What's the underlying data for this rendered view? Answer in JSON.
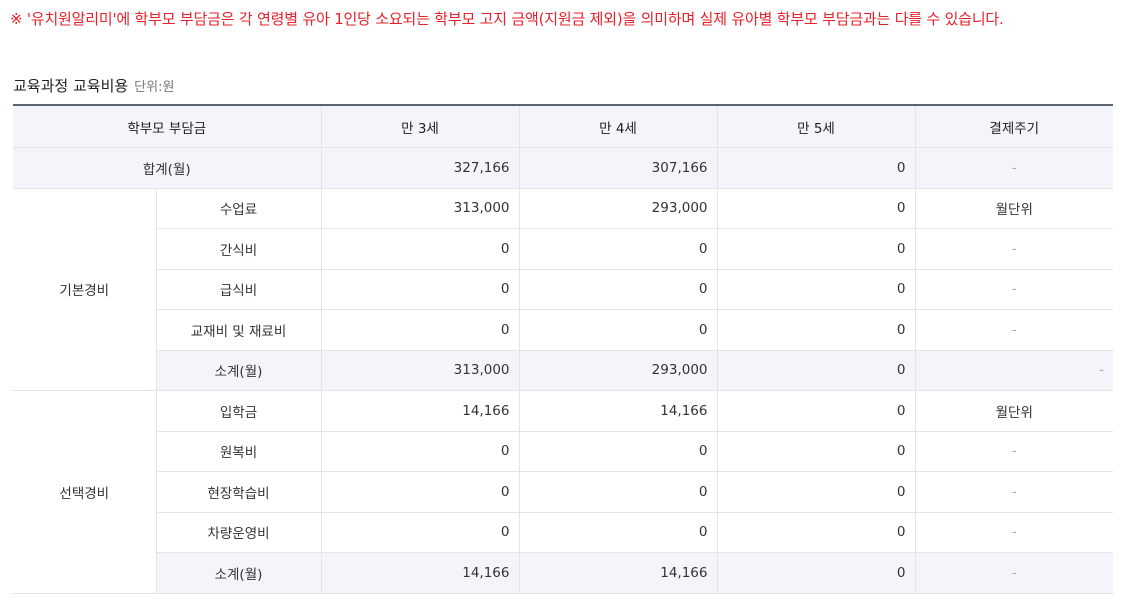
{
  "notice": "※ '유치원알리미'에 학부모 부담금은 각 연령별 유아 1인당 소요되는 학부모 고지 금액(지원금 제외)을 의미하며 실제 유아별 학부모 부담금과는 다를 수 있습니다.",
  "section": {
    "title": "교육과정 교육비용",
    "unit": "단위:원"
  },
  "table": {
    "headers": [
      "학부모 부담금",
      "만 3세",
      "만 4세",
      "만 5세",
      "결제주기"
    ],
    "total": {
      "label": "합계(월)",
      "age3": "327,166",
      "age4": "307,166",
      "age5": "0",
      "cycle": "-"
    },
    "basic": {
      "group": "기본경비",
      "rows": [
        {
          "label": "수업료",
          "age3": "313,000",
          "age4": "293,000",
          "age5": "0",
          "cycle": "월단위"
        },
        {
          "label": "간식비",
          "age3": "0",
          "age4": "0",
          "age5": "0",
          "cycle": "-"
        },
        {
          "label": "급식비",
          "age3": "0",
          "age4": "0",
          "age5": "0",
          "cycle": "-"
        },
        {
          "label": "교재비 및 재료비",
          "age3": "0",
          "age4": "0",
          "age5": "0",
          "cycle": "-"
        }
      ],
      "subtotal": {
        "label": "소계(월)",
        "age3": "313,000",
        "age4": "293,000",
        "age5": "0",
        "cycle": "-"
      }
    },
    "optional": {
      "group": "선택경비",
      "rows": [
        {
          "label": "입학금",
          "age3": "14,166",
          "age4": "14,166",
          "age5": "0",
          "cycle": "월단위"
        },
        {
          "label": "원복비",
          "age3": "0",
          "age4": "0",
          "age5": "0",
          "cycle": "-"
        },
        {
          "label": "현장학습비",
          "age3": "0",
          "age4": "0",
          "age5": "0",
          "cycle": "-"
        },
        {
          "label": "차량운영비",
          "age3": "0",
          "age4": "0",
          "age5": "0",
          "cycle": "-"
        }
      ],
      "subtotal": {
        "label": "소계(월)",
        "age3": "14,166",
        "age4": "14,166",
        "age5": "0",
        "cycle": "-"
      }
    }
  }
}
